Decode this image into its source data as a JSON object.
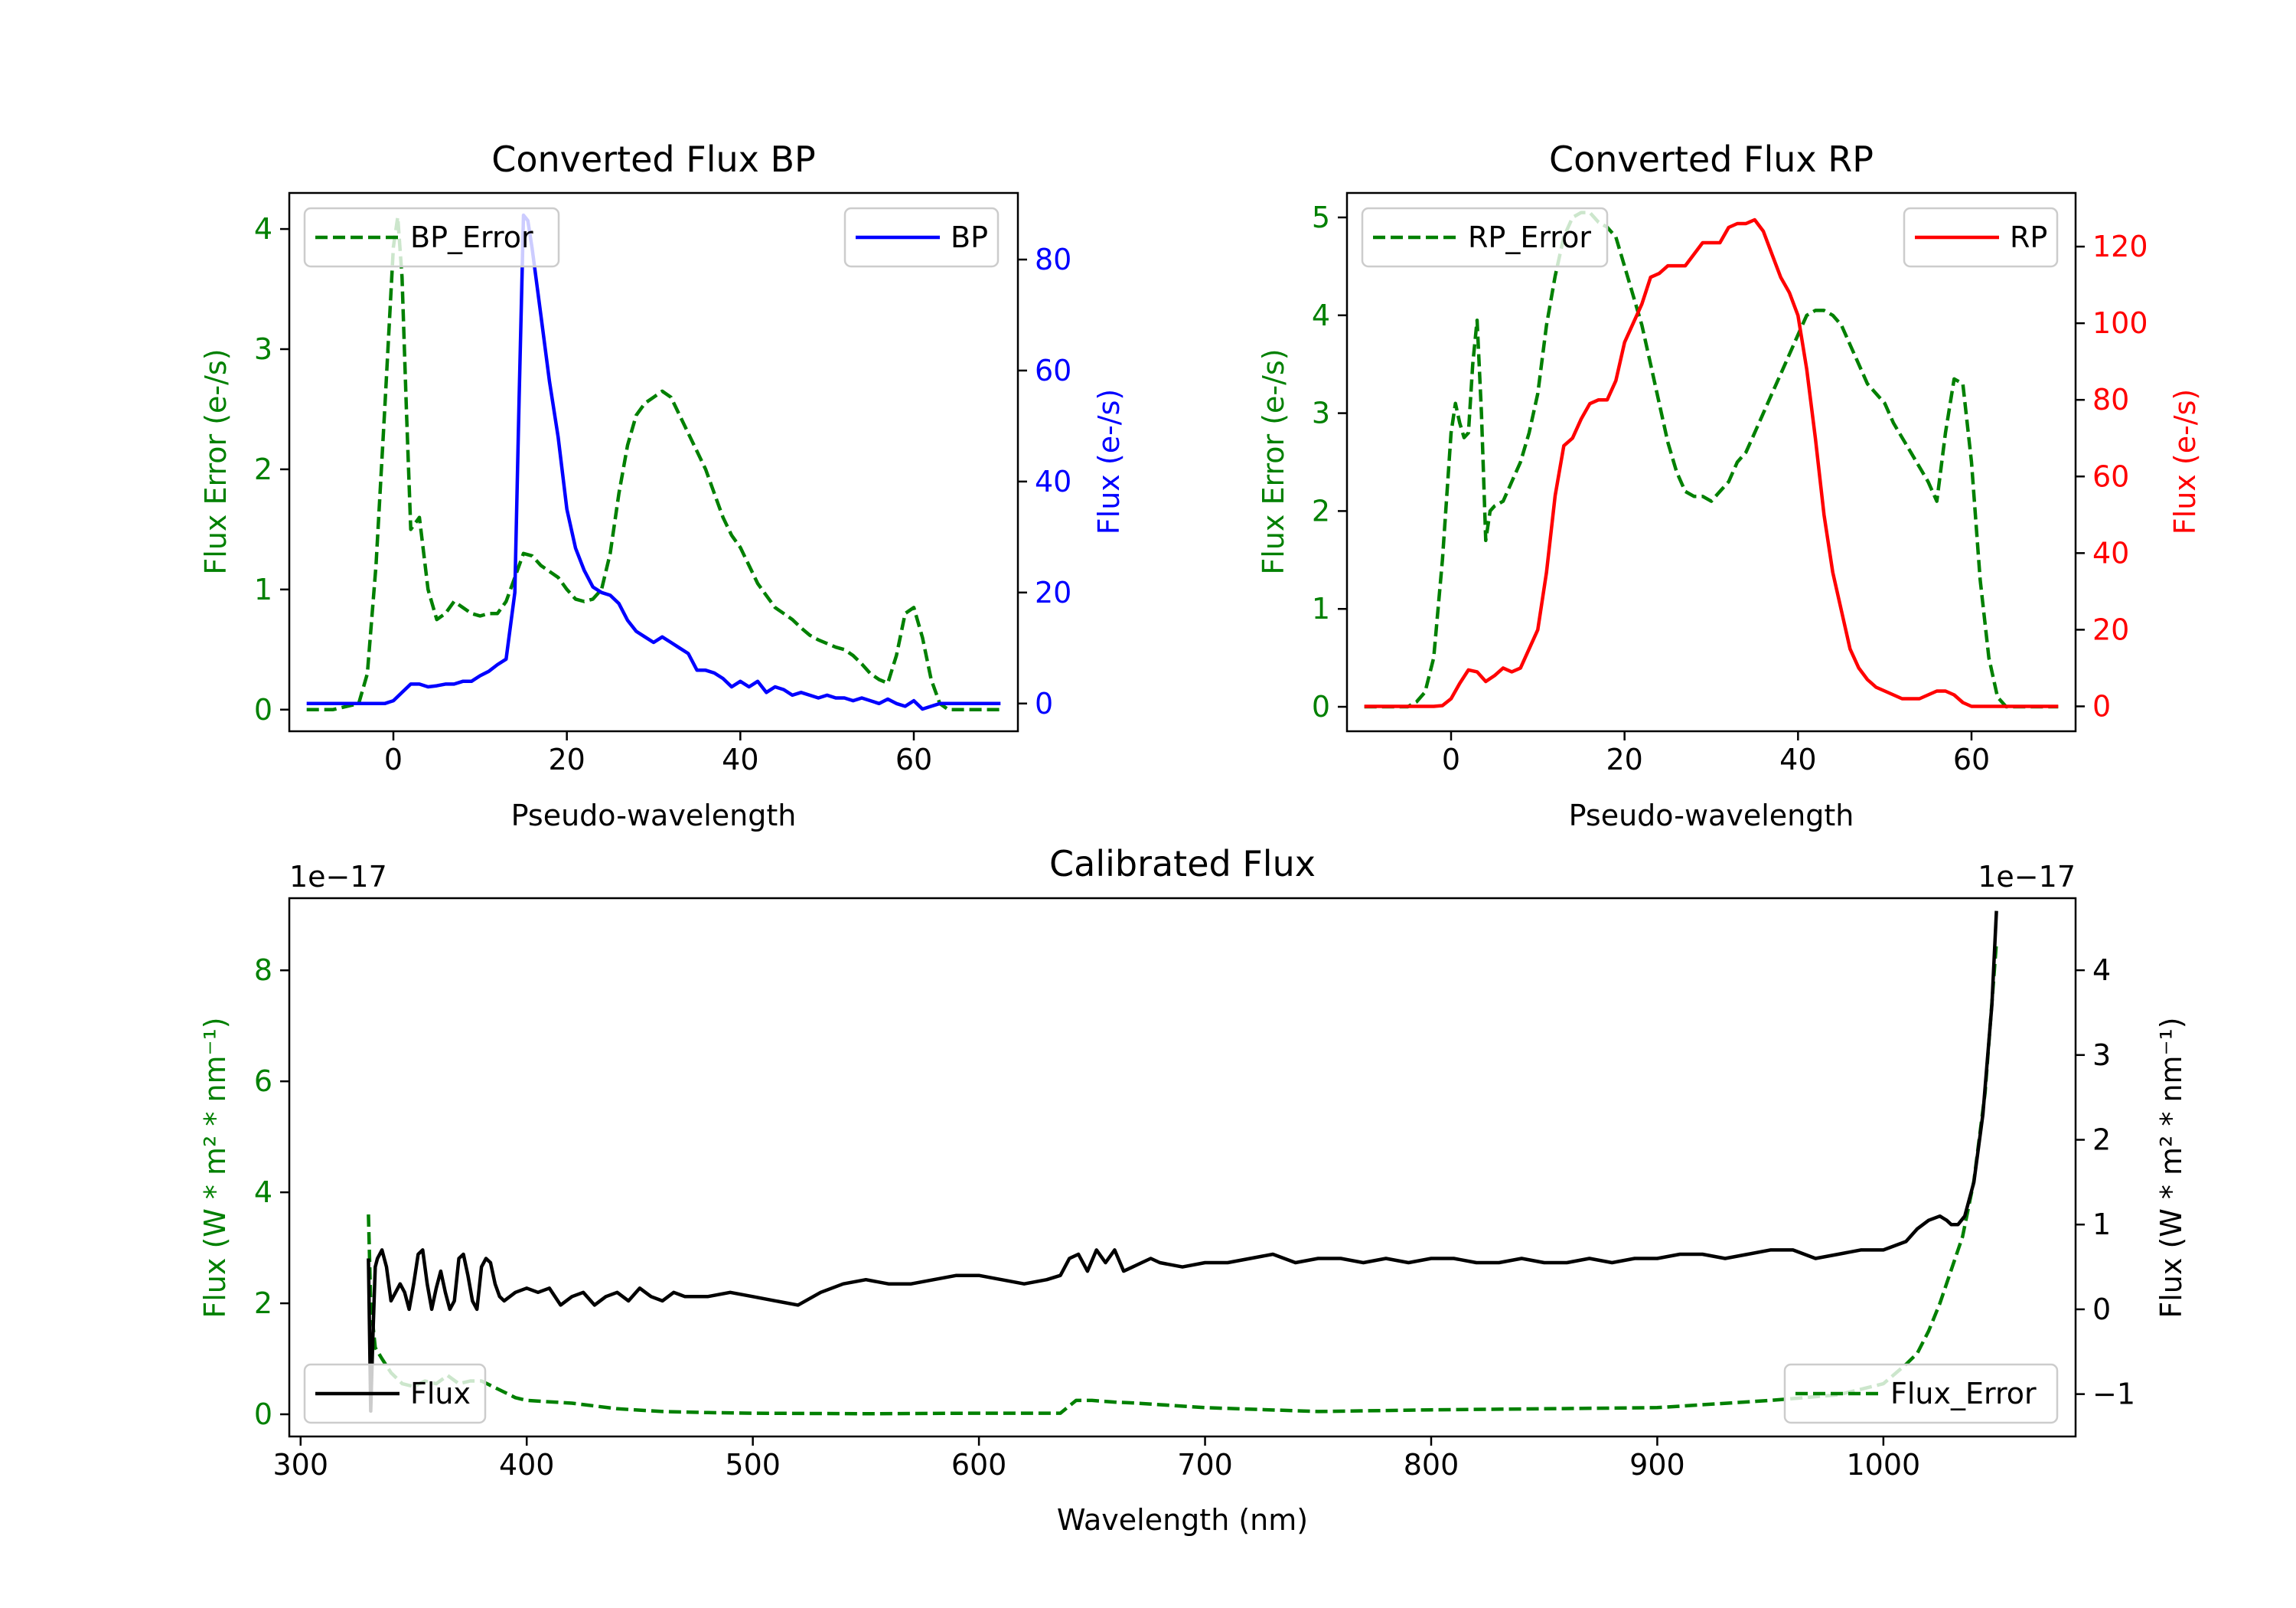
{
  "colors": {
    "bp": "#0000ff",
    "rp": "#ff0000",
    "error": "#008000",
    "flux": "#000000"
  },
  "chart_data": [
    {
      "id": "bp",
      "type": "line",
      "title": "Converted Flux BP",
      "xlabel": "Pseudo-wavelength",
      "ylabel_left": "Flux Error (e-/s)",
      "ylabel_right": "Flux (e-/s)",
      "xlim": [
        -12,
        72
      ],
      "ylim_left": [
        -0.18,
        4.3
      ],
      "ylim_right": [
        -5,
        92
      ],
      "xticks": [
        0,
        20,
        40,
        60
      ],
      "yticks_left": [
        0,
        1,
        2,
        3,
        4
      ],
      "yticks_right": [
        0,
        20,
        40,
        60,
        80
      ],
      "legend_left": "BP_Error",
      "legend_right": "BP",
      "series": [
        {
          "name": "BP_Error",
          "axis": "left",
          "style": "dashed",
          "color": "#008000",
          "x": [
            -10,
            -7,
            -4,
            -3,
            -2,
            -1,
            0,
            0.5,
            1,
            1.5,
            2,
            3,
            4,
            5,
            6,
            7,
            8,
            9,
            10,
            11,
            12,
            13,
            14,
            15,
            16,
            17,
            18,
            19,
            20,
            21,
            22,
            23,
            24,
            25,
            26,
            27,
            28,
            29,
            30,
            31,
            32,
            33,
            34,
            35,
            36,
            37,
            38,
            39,
            40,
            41,
            42,
            43,
            44,
            45,
            46,
            47,
            48,
            49,
            50,
            51,
            52,
            53,
            54,
            55,
            56,
            57,
            58,
            59,
            60,
            61,
            62,
            63,
            64,
            65,
            66,
            67,
            68,
            69,
            70
          ],
          "y": [
            0,
            0,
            0.05,
            0.3,
            1.2,
            2.5,
            3.85,
            4.1,
            3.6,
            2.5,
            1.5,
            1.6,
            1.0,
            0.75,
            0.8,
            0.9,
            0.85,
            0.8,
            0.78,
            0.8,
            0.8,
            0.9,
            1.1,
            1.3,
            1.28,
            1.2,
            1.15,
            1.1,
            1.0,
            0.92,
            0.9,
            0.92,
            1.0,
            1.3,
            1.8,
            2.2,
            2.45,
            2.55,
            2.6,
            2.65,
            2.6,
            2.45,
            2.3,
            2.15,
            2.0,
            1.8,
            1.6,
            1.45,
            1.35,
            1.2,
            1.05,
            0.95,
            0.85,
            0.8,
            0.75,
            0.68,
            0.62,
            0.58,
            0.55,
            0.52,
            0.5,
            0.45,
            0.38,
            0.3,
            0.25,
            0.22,
            0.45,
            0.8,
            0.85,
            0.6,
            0.25,
            0.05,
            0,
            0,
            0,
            0,
            0,
            0,
            0
          ]
        },
        {
          "name": "BP",
          "axis": "right",
          "style": "solid",
          "color": "#0000ff",
          "x": [
            -10,
            -6,
            -4,
            -2,
            -1,
            0,
            1,
            2,
            3,
            4,
            5,
            6,
            7,
            8,
            9,
            10,
            11,
            12,
            13,
            14,
            14.5,
            15,
            15.5,
            16,
            17,
            18,
            19,
            20,
            21,
            22,
            23,
            24,
            25,
            26,
            27,
            28,
            29,
            30,
            31,
            32,
            33,
            34,
            35,
            36,
            37,
            38,
            39,
            40,
            41,
            42,
            43,
            44,
            45,
            46,
            47,
            48,
            49,
            50,
            51,
            52,
            53,
            54,
            55,
            56,
            57,
            58,
            59,
            60,
            61,
            62,
            63,
            64,
            66,
            68,
            70
          ],
          "y": [
            0,
            0,
            0,
            0,
            0,
            0.5,
            2,
            3.5,
            3.5,
            3,
            3.2,
            3.5,
            3.5,
            4,
            4,
            5,
            5.8,
            7,
            8,
            20,
            55,
            88,
            87,
            82,
            70,
            58,
            48,
            35,
            28,
            24,
            21,
            20,
            19.5,
            18,
            15,
            13,
            12,
            11,
            12,
            11,
            10,
            9,
            6,
            6,
            5.5,
            4.5,
            3,
            4,
            3,
            4,
            2,
            3,
            2.5,
            1.5,
            2,
            1.5,
            1,
            1.5,
            1,
            1,
            0.5,
            1,
            0.5,
            0,
            0.8,
            0,
            -0.5,
            0.5,
            -1,
            -0.5,
            0,
            0,
            0,
            0,
            0
          ]
        }
      ]
    },
    {
      "id": "rp",
      "type": "line",
      "title": "Converted Flux RP",
      "xlabel": "Pseudo-wavelength",
      "ylabel_left": "Flux Error (e-/s)",
      "ylabel_right": "Flux (e-/s)",
      "xlim": [
        -12,
        72
      ],
      "ylim_left": [
        -0.25,
        5.25
      ],
      "ylim_right": [
        -6.5,
        134
      ],
      "xticks": [
        0,
        20,
        40,
        60
      ],
      "yticks_left": [
        0,
        1,
        2,
        3,
        4,
        5
      ],
      "yticks_right": [
        0,
        20,
        40,
        60,
        80,
        100,
        120
      ],
      "legend_left": "RP_Error",
      "legend_right": "RP",
      "series": [
        {
          "name": "RP_Error",
          "axis": "left",
          "style": "dashed",
          "color": "#008000",
          "x": [
            -10,
            -5,
            -4,
            -3,
            -2,
            -1,
            0,
            0.5,
            1,
            1.5,
            2,
            2.5,
            3,
            3.5,
            4,
            4.5,
            5,
            6,
            7,
            8,
            9,
            10,
            11,
            12,
            13,
            14,
            15,
            16,
            17,
            18,
            19,
            20,
            21,
            22,
            23,
            24,
            25,
            26,
            27,
            28,
            29,
            30,
            31,
            32,
            33,
            34,
            35,
            36,
            37,
            38,
            39,
            40,
            41,
            42,
            43,
            44,
            45,
            46,
            47,
            48,
            49,
            50,
            51,
            52,
            53,
            54,
            55,
            56,
            57,
            58,
            59,
            60,
            61,
            62,
            63,
            64,
            65,
            66,
            68,
            70
          ],
          "y": [
            0,
            0,
            0.05,
            0.15,
            0.5,
            1.5,
            2.8,
            3.1,
            2.9,
            2.75,
            2.8,
            3.5,
            3.95,
            3.0,
            1.7,
            2.0,
            2.05,
            2.1,
            2.3,
            2.5,
            2.8,
            3.2,
            3.9,
            4.4,
            4.8,
            5.0,
            5.05,
            5.05,
            4.95,
            4.9,
            4.8,
            4.5,
            4.2,
            3.9,
            3.5,
            3.1,
            2.7,
            2.4,
            2.2,
            2.15,
            2.15,
            2.1,
            2.2,
            2.3,
            2.5,
            2.6,
            2.8,
            3.0,
            3.2,
            3.4,
            3.6,
            3.8,
            4.0,
            4.05,
            4.05,
            4.0,
            3.9,
            3.7,
            3.5,
            3.3,
            3.2,
            3.1,
            2.9,
            2.75,
            2.6,
            2.45,
            2.3,
            2.1,
            2.8,
            3.35,
            3.3,
            2.5,
            1.3,
            0.5,
            0.1,
            0,
            0,
            0,
            0,
            0
          ]
        },
        {
          "name": "RP",
          "axis": "right",
          "style": "solid",
          "color": "#ff0000",
          "x": [
            -10,
            -4,
            -2,
            -1,
            0,
            1,
            2,
            3,
            4,
            5,
            6,
            7,
            8,
            9,
            10,
            11,
            12,
            13,
            14,
            15,
            16,
            17,
            18,
            19,
            20,
            21,
            22,
            23,
            24,
            25,
            26,
            27,
            28,
            29,
            30,
            31,
            32,
            33,
            34,
            35,
            36,
            37,
            38,
            39,
            40,
            41,
            42,
            43,
            44,
            45,
            46,
            47,
            48,
            49,
            50,
            51,
            52,
            53,
            54,
            55,
            56,
            57,
            58,
            59,
            60,
            62,
            64,
            66,
            68,
            70
          ],
          "y": [
            0,
            0,
            0,
            0.2,
            2,
            6,
            9.5,
            9,
            6.5,
            8,
            10,
            9,
            10,
            15,
            20,
            35,
            55,
            68,
            70,
            75,
            79,
            80,
            80,
            85,
            95,
            100,
            105,
            112,
            113,
            115,
            115,
            115,
            118,
            121,
            121,
            121,
            125,
            126,
            126,
            127,
            124,
            118,
            112,
            108,
            102,
            88,
            70,
            50,
            35,
            25,
            15,
            10,
            7,
            5,
            4,
            3,
            2,
            2,
            2,
            3,
            4,
            4,
            3,
            1,
            0,
            0,
            0,
            0,
            0,
            0
          ]
        }
      ]
    },
    {
      "id": "calibrated",
      "type": "line",
      "title": "Calibrated Flux",
      "xlabel": "Wavelength (nm)",
      "ylabel_left": "Flux (W * m² * nm⁻¹)",
      "ylabel_right": "Flux (W * m² * nm⁻¹)",
      "offset_left": "1e−17",
      "offset_right": "1e−17",
      "xlim": [
        295,
        1085
      ],
      "ylim_left": [
        -0.4,
        9.3
      ],
      "ylim_right": [
        -1.5,
        4.85
      ],
      "xticks": [
        300,
        400,
        500,
        600,
        700,
        800,
        900,
        1000
      ],
      "yticks_left": [
        0,
        2,
        4,
        6,
        8
      ],
      "yticks_right": [
        -1,
        0,
        1,
        2,
        3,
        4
      ],
      "yticklabels_right": [
        "−1",
        "0",
        "1",
        "2",
        "3",
        "4"
      ],
      "legend_left": "Flux",
      "legend_right": "Flux_Error",
      "series": [
        {
          "name": "Flux_Error",
          "axis": "left",
          "style": "dashed",
          "color": "#008000",
          "x": [
            330,
            331,
            333,
            336,
            340,
            345,
            350,
            355,
            360,
            365,
            370,
            375,
            380,
            385,
            390,
            395,
            400,
            420,
            440,
            460,
            480,
            500,
            550,
            600,
            636,
            643,
            650,
            660,
            670,
            700,
            750,
            800,
            850,
            900,
            950,
            980,
            1000,
            1010,
            1015,
            1020,
            1025,
            1030,
            1035,
            1040,
            1045,
            1050
          ],
          "y": [
            3.6,
            2.0,
            1.2,
            1.0,
            0.75,
            0.55,
            0.5,
            0.6,
            0.55,
            0.7,
            0.55,
            0.6,
            0.6,
            0.5,
            0.4,
            0.3,
            0.25,
            0.2,
            0.1,
            0.05,
            0.03,
            0.02,
            0.01,
            0.02,
            0.02,
            0.25,
            0.25,
            0.22,
            0.2,
            0.12,
            0.05,
            0.08,
            0.1,
            0.12,
            0.25,
            0.35,
            0.55,
            0.9,
            1.1,
            1.5,
            2.0,
            2.6,
            3.2,
            4.2,
            5.8,
            8.5
          ]
        },
        {
          "name": "Flux",
          "axis": "right",
          "style": "solid",
          "color": "#000000",
          "x": [
            330,
            331,
            332,
            333,
            334,
            336,
            338,
            340,
            342,
            344,
            346,
            348,
            350,
            352,
            354,
            356,
            358,
            360,
            362,
            364,
            366,
            368,
            370,
            372,
            374,
            376,
            378,
            380,
            382,
            384,
            386,
            388,
            390,
            395,
            400,
            405,
            410,
            415,
            420,
            425,
            430,
            435,
            440,
            445,
            450,
            455,
            460,
            465,
            470,
            480,
            490,
            500,
            510,
            520,
            530,
            540,
            550,
            560,
            570,
            580,
            590,
            600,
            610,
            620,
            630,
            636,
            640,
            644,
            648,
            652,
            656,
            660,
            664,
            668,
            672,
            676,
            680,
            690,
            700,
            710,
            720,
            730,
            740,
            750,
            760,
            770,
            780,
            790,
            800,
            810,
            820,
            830,
            840,
            850,
            860,
            870,
            880,
            890,
            900,
            910,
            920,
            930,
            940,
            950,
            960,
            970,
            980,
            990,
            1000,
            1010,
            1015,
            1020,
            1025,
            1028,
            1030,
            1033,
            1036,
            1040,
            1044,
            1048,
            1050
          ],
          "y": [
            0.6,
            -1.2,
            -0.3,
            0.5,
            0.6,
            0.7,
            0.5,
            0.1,
            0.2,
            0.3,
            0.2,
            0.0,
            0.3,
            0.65,
            0.7,
            0.3,
            0.0,
            0.25,
            0.45,
            0.2,
            0.0,
            0.1,
            0.6,
            0.65,
            0.4,
            0.1,
            0.0,
            0.5,
            0.6,
            0.55,
            0.3,
            0.15,
            0.1,
            0.2,
            0.25,
            0.2,
            0.25,
            0.05,
            0.15,
            0.2,
            0.05,
            0.15,
            0.2,
            0.1,
            0.25,
            0.15,
            0.1,
            0.2,
            0.15,
            0.15,
            0.2,
            0.15,
            0.1,
            0.05,
            0.2,
            0.3,
            0.35,
            0.3,
            0.3,
            0.35,
            0.4,
            0.4,
            0.35,
            0.3,
            0.35,
            0.4,
            0.6,
            0.65,
            0.45,
            0.7,
            0.55,
            0.7,
            0.45,
            0.5,
            0.55,
            0.6,
            0.55,
            0.5,
            0.55,
            0.55,
            0.6,
            0.65,
            0.55,
            0.6,
            0.6,
            0.55,
            0.6,
            0.55,
            0.6,
            0.6,
            0.55,
            0.55,
            0.6,
            0.55,
            0.55,
            0.6,
            0.55,
            0.6,
            0.6,
            0.65,
            0.65,
            0.6,
            0.65,
            0.7,
            0.7,
            0.6,
            0.65,
            0.7,
            0.7,
            0.8,
            0.95,
            1.05,
            1.1,
            1.05,
            1.0,
            1.0,
            1.1,
            1.5,
            2.3,
            3.6,
            4.7
          ]
        }
      ]
    }
  ]
}
